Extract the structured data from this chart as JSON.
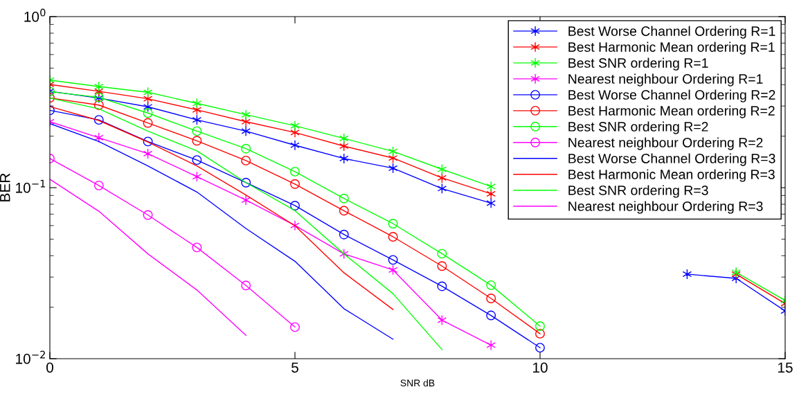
{
  "chart_data": {
    "type": "line",
    "xlabel": "SNR dB",
    "ylabel": "BER",
    "log": "y",
    "grid": false,
    "legend": "top right",
    "x": [
      0,
      1,
      2,
      3,
      4,
      5,
      6,
      7,
      8,
      9,
      10,
      11,
      12,
      13,
      14,
      15
    ],
    "xlim": [
      0,
      15
    ],
    "xticks": [
      0,
      5,
      10,
      15
    ],
    "ylim": [
      0.01,
      1
    ],
    "yticks": [
      {
        "value": 0.01,
        "label": "10$^{−2}$"
      },
      {
        "value": 0.1,
        "label": "10$^{−1}$"
      },
      {
        "value": 1,
        "label": "10$^{0}$"
      }
    ],
    "series": [
      {
        "name": "Best Worse Channel Ordering R=1",
        "color": "#0000ff",
        "marker": "cross",
        "values": [
          0.366,
          0.334,
          0.297,
          0.249,
          0.214,
          0.177,
          0.148,
          0.13,
          0.0988,
          0.0812,
          null,
          null,
          null,
          0.0312,
          0.0295,
          0.019
        ]
      },
      {
        "name": "Best Harmonic Mean ordering R=1",
        "color": "#ff0000",
        "marker": "cross",
        "values": [
          0.401,
          0.366,
          0.331,
          0.285,
          0.243,
          0.21,
          0.175,
          0.149,
          0.114,
          0.092,
          null,
          null,
          null,
          null,
          0.0312,
          0.021
        ]
      },
      {
        "name": "Best SNR ordering R=1",
        "color": "#00ff00",
        "marker": "cross",
        "values": [
          0.425,
          0.39,
          0.361,
          0.311,
          0.267,
          0.23,
          0.194,
          0.163,
          0.128,
          0.1016,
          null,
          null,
          null,
          null,
          0.032,
          0.0219
        ]
      },
      {
        "name": "Nearest neighbour Ordering R=1",
        "color": "#ff00ff",
        "marker": "cross",
        "values": [
          0.243,
          0.196,
          0.158,
          0.116,
          0.0846,
          0.0601,
          0.041,
          0.033,
          0.0168,
          0.012,
          null,
          null,
          null,
          null,
          null,
          null
        ]
      },
      {
        "name": "Best Worse Channel Ordering R=2",
        "color": "#0000ff",
        "marker": "circle",
        "values": [
          0.283,
          0.249,
          0.186,
          0.145,
          0.107,
          0.0785,
          0.0532,
          0.0378,
          0.0265,
          0.0179,
          0.0116,
          null,
          null,
          null,
          null,
          null
        ]
      },
      {
        "name": "Best Harmonic Mean ordering R=2",
        "color": "#ff0000",
        "marker": "circle",
        "values": [
          0.335,
          0.304,
          0.239,
          0.188,
          0.144,
          0.105,
          0.0733,
          0.0516,
          0.0348,
          0.0225,
          0.014,
          null,
          null,
          null,
          null,
          null
        ]
      },
      {
        "name": "Best SNR ordering R=2",
        "color": "#00ff00",
        "marker": "circle",
        "values": [
          0.364,
          0.337,
          0.273,
          0.214,
          0.169,
          0.124,
          0.0864,
          0.0616,
          0.0411,
          0.0269,
          0.0155,
          null,
          null,
          null,
          null,
          null
        ]
      },
      {
        "name": "Nearest neighbour Ordering R=2",
        "color": "#ff00ff",
        "marker": "circle",
        "values": [
          0.148,
          0.103,
          0.0692,
          0.0447,
          0.0268,
          0.0153,
          null,
          null,
          null,
          null,
          null,
          null,
          null,
          null,
          null,
          null
        ]
      },
      {
        "name": "Best Worse Channel Ordering R=3",
        "color": "#0000ff",
        "values": [
          0.237,
          0.186,
          0.134,
          0.0943,
          0.0577,
          0.0371,
          0.0196,
          0.013,
          null,
          null,
          null,
          null,
          null,
          null,
          null,
          null
        ]
      },
      {
        "name": "Best Harmonic Mean ordering R=3",
        "color": "#ff0000",
        "values": [
          0.298,
          0.247,
          0.185,
          0.134,
          0.0905,
          0.0599,
          0.0318,
          0.0194,
          null,
          null,
          null,
          null,
          null,
          null,
          null,
          null
        ]
      },
      {
        "name": "Best SNR ordering R=3",
        "color": "#00ff00",
        "values": [
          0.334,
          0.289,
          0.214,
          0.164,
          0.107,
          0.0734,
          0.041,
          0.024,
          0.0113,
          null,
          null,
          null,
          null,
          null,
          null,
          null
        ]
      },
      {
        "name": "Nearest neighbour Ordering R=3",
        "color": "#ff00ff",
        "values": [
          0.112,
          0.0728,
          0.041,
          0.0252,
          0.0137,
          null,
          null,
          null,
          null,
          null,
          null,
          null,
          null,
          null,
          null,
          null
        ]
      }
    ]
  }
}
